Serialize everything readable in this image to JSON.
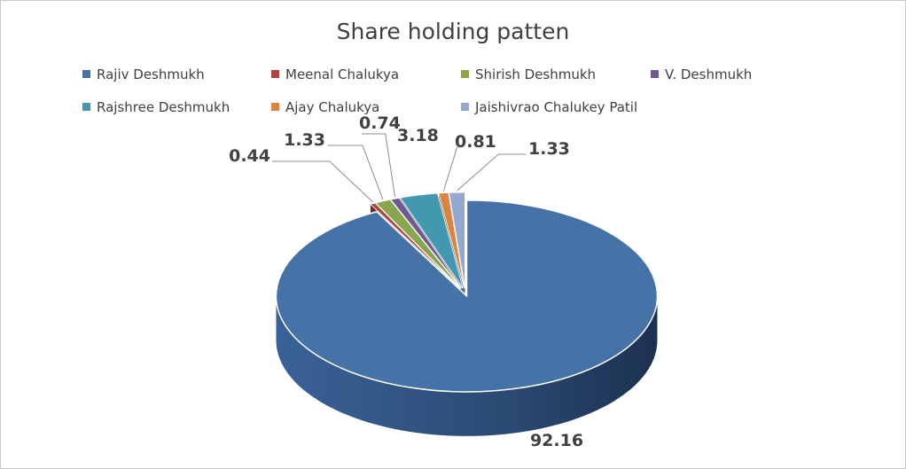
{
  "chart_data": {
    "type": "pie",
    "title": "Share holding patten",
    "legend_position": "top",
    "style": "3d-exploded",
    "slices": [
      {
        "name": "Rajiv Deshmukh",
        "value": 92.16,
        "color": "#4572A7",
        "side": "#2B4A70"
      },
      {
        "name": "Meenal Chalukya",
        "value": 0.44,
        "color": "#AA4643",
        "side": "#6E2C2A"
      },
      {
        "name": "Shirish Deshmukh",
        "value": 1.33,
        "color": "#89A54E",
        "side": "#5A6D32"
      },
      {
        "name": "V. Deshmukh",
        "value": 0.74,
        "color": "#71588F",
        "side": "#483A5D"
      },
      {
        "name": "Rajshree Deshmukh",
        "value": 3.18,
        "color": "#4198AF",
        "side": "#2A6373"
      },
      {
        "name": "Ajay Chalukya",
        "value": 0.81,
        "color": "#DB843D",
        "side": "#8F5527"
      },
      {
        "name": "Jaishivrao Chalukey Patil",
        "value": 1.33,
        "color": "#93A9CF",
        "side": "#5E6E88"
      }
    ]
  }
}
